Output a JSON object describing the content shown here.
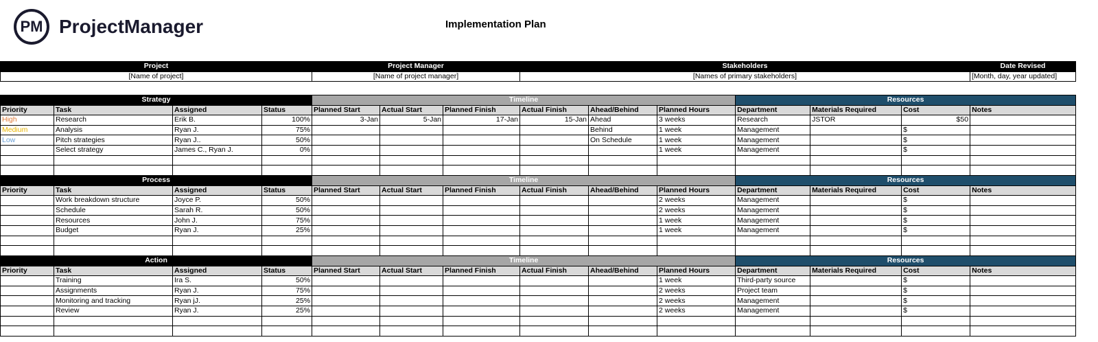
{
  "logo": {
    "mark": "PM",
    "name": "ProjectManager"
  },
  "title": "Implementation Plan",
  "info": {
    "headers": [
      "Project",
      "Project Manager",
      "Stakeholders",
      "Date Revised"
    ],
    "values": [
      "[Name of project]",
      "[Name of project manager]",
      "[Names of primary stakeholders]",
      "[Month, day, year updated]"
    ]
  },
  "group_labels": {
    "timeline": "Timeline",
    "resources": "Resources"
  },
  "columns": [
    "Priority",
    "Task",
    "Assigned",
    "Status",
    "Planned Start",
    "Actual Start",
    "Planned Finish",
    "Actual Finish",
    "Ahead/Behind",
    "Planned Hours",
    "Department",
    "Materials Required",
    "Cost",
    "Notes"
  ],
  "priority_colors": {
    "High": "#e07b39",
    "Medium": "#e8b400",
    "Low": "#6a9fd4"
  },
  "sections": [
    {
      "name": "Strategy",
      "rows": [
        [
          "High",
          "Research",
          "Erik B.",
          "100%",
          "3-Jan",
          "5-Jan",
          "17-Jan",
          "15-Jan",
          "Ahead",
          "3 weeks",
          "Research",
          "JSTOR",
          "$50",
          ""
        ],
        [
          "Medium",
          "Analysis",
          "Ryan J.",
          "75%",
          "",
          "",
          "",
          "",
          "Behind",
          "1 week",
          "Management",
          "",
          "$",
          ""
        ],
        [
          "Low",
          "Pitch strategies",
          "Ryan J..",
          "50%",
          "",
          "",
          "",
          "",
          "On Schedule",
          "1 week",
          "Management",
          "",
          "$",
          ""
        ],
        [
          "",
          "Select strategy",
          "James C., Ryan J.",
          "0%",
          "",
          "",
          "",
          "",
          "",
          "1 week",
          "Management",
          "",
          "$",
          ""
        ],
        [
          "",
          "",
          "",
          "",
          "",
          "",
          "",
          "",
          "",
          "",
          "",
          "",
          "",
          ""
        ],
        [
          "",
          "",
          "",
          "",
          "",
          "",
          "",
          "",
          "",
          "",
          "",
          "",
          "",
          ""
        ]
      ]
    },
    {
      "name": "Process",
      "rows": [
        [
          "",
          "Work breakdown structure",
          "Joyce P.",
          "50%",
          "",
          "",
          "",
          "",
          "",
          "2 weeks",
          "Management",
          "",
          "$",
          ""
        ],
        [
          "",
          "Schedule",
          "Sarah R.",
          "50%",
          "",
          "",
          "",
          "",
          "",
          "2 weeks",
          "Management",
          "",
          "$",
          ""
        ],
        [
          "",
          "Resources",
          "John J.",
          "75%",
          "",
          "",
          "",
          "",
          "",
          "1 week",
          "Management",
          "",
          "$",
          ""
        ],
        [
          "",
          "Budget",
          "Ryan J.",
          "25%",
          "",
          "",
          "",
          "",
          "",
          "1 week",
          "Management",
          "",
          "$",
          ""
        ],
        [
          "",
          "",
          "",
          "",
          "",
          "",
          "",
          "",
          "",
          "",
          "",
          "",
          "",
          ""
        ],
        [
          "",
          "",
          "",
          "",
          "",
          "",
          "",
          "",
          "",
          "",
          "",
          "",
          "",
          ""
        ]
      ]
    },
    {
      "name": "Action",
      "rows": [
        [
          "",
          "Training",
          "Ira S.",
          "50%",
          "",
          "",
          "",
          "",
          "",
          "1 week",
          "Third-party source",
          "",
          "$",
          ""
        ],
        [
          "",
          "Assignments",
          "Ryan J.",
          "75%",
          "",
          "",
          "",
          "",
          "",
          "2 weeks",
          "Project team",
          "",
          "$",
          ""
        ],
        [
          "",
          "Monitoring and tracking",
          "Ryan jJ.",
          "25%",
          "",
          "",
          "",
          "",
          "",
          "2 weeks",
          "Management",
          "",
          "$",
          ""
        ],
        [
          "",
          "Review",
          "Ryan J.",
          "25%",
          "",
          "",
          "",
          "",
          "",
          "2 weeks",
          "Management",
          "",
          "$",
          ""
        ],
        [
          "",
          "",
          "",
          "",
          "",
          "",
          "",
          "",
          "",
          "",
          "",
          "",
          "",
          ""
        ],
        [
          "",
          "",
          "",
          "",
          "",
          "",
          "",
          "",
          "",
          "",
          "",
          "",
          "",
          ""
        ]
      ]
    }
  ]
}
